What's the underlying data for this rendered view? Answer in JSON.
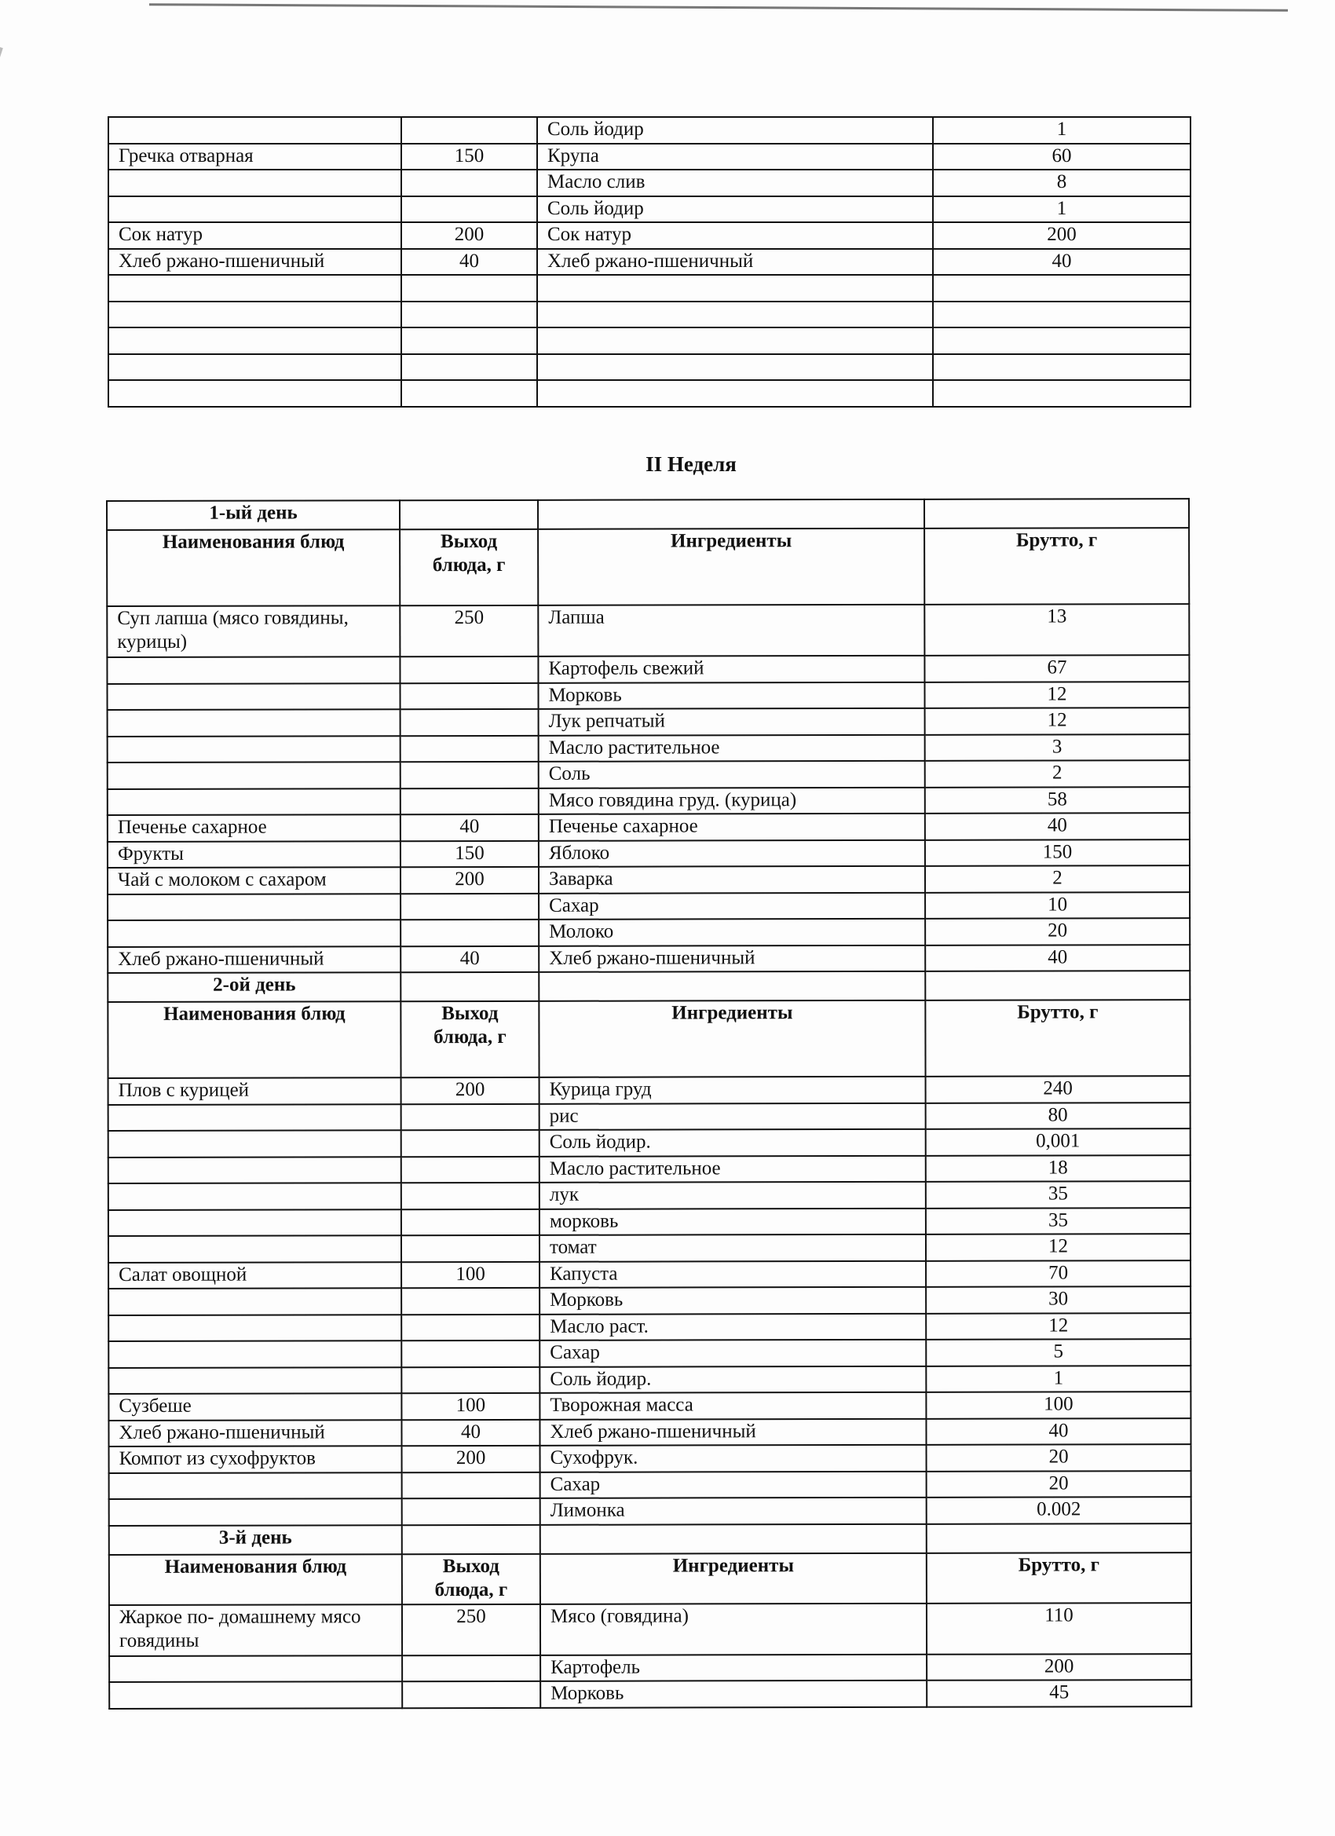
{
  "top_table": {
    "rows": [
      [
        "",
        "",
        "Соль йодир",
        "1"
      ],
      [
        "Гречка отварная",
        "150",
        "Крупа",
        "60"
      ],
      [
        "",
        "",
        "Масло слив",
        "8"
      ],
      [
        "",
        "",
        "Соль йодир",
        "1"
      ],
      [
        "Сок натур",
        "200",
        "Сок натур",
        "200"
      ],
      [
        "Хлеб ржано-пшеничный",
        "40",
        "Хлеб ржано-пшеничный",
        "40"
      ],
      [
        "",
        "",
        "",
        ""
      ],
      [
        "",
        "",
        "",
        ""
      ],
      [
        "",
        "",
        "",
        ""
      ],
      [
        "",
        "",
        "",
        ""
      ],
      [
        "",
        "",
        "",
        ""
      ]
    ]
  },
  "week_title": "II Неделя",
  "week_table": {
    "headers": {
      "dish": "Наименования блюд",
      "yield": "Выход блюда, г",
      "ingredients": "Ингредиенты",
      "gross": "Брутто, г"
    },
    "days": [
      {
        "title": "1-ый день",
        "rows": [
          [
            "Суп лапша (мясо говядины, курицы)",
            "250",
            "Лапша",
            "13"
          ],
          [
            "",
            "",
            "Картофель свежий",
            "67"
          ],
          [
            "",
            "",
            "Морковь",
            "12"
          ],
          [
            "",
            "",
            "Лук репчатый",
            "12"
          ],
          [
            "",
            "",
            "Масло растительное",
            "3"
          ],
          [
            "",
            "",
            "Соль",
            "2"
          ],
          [
            "",
            "",
            "Мясо говядина груд. (курица)",
            "58"
          ],
          [
            "Печенье сахарное",
            "40",
            "Печенье сахарное",
            "40"
          ],
          [
            "Фрукты",
            "150",
            "Яблоко",
            "150"
          ],
          [
            "Чай с молоком с сахаром",
            "200",
            "Заварка",
            "2"
          ],
          [
            "",
            "",
            "Сахар",
            "10"
          ],
          [
            "",
            "",
            "Молоко",
            "20"
          ],
          [
            "Хлеб ржано-пшеничный",
            "40",
            "Хлеб ржано-пшеничный",
            "40"
          ]
        ]
      },
      {
        "title": "2-ой день",
        "rows": [
          [
            "Плов с курицей",
            "200",
            "Курица груд",
            "240"
          ],
          [
            "",
            "",
            "рис",
            "80"
          ],
          [
            "",
            "",
            "Соль йодир.",
            "0,001"
          ],
          [
            "",
            "",
            "Масло растительное",
            "18"
          ],
          [
            "",
            "",
            "лук",
            "35"
          ],
          [
            "",
            "",
            "морковь",
            "35"
          ],
          [
            "",
            "",
            "томат",
            "12"
          ],
          [
            "Салат овощной",
            "100",
            "Капуста",
            "70"
          ],
          [
            "",
            "",
            "Морковь",
            "30"
          ],
          [
            "",
            "",
            "Масло раст.",
            "12"
          ],
          [
            "",
            "",
            "Сахар",
            "5"
          ],
          [
            "",
            "",
            "Соль йодир.",
            "1"
          ],
          [
            "Сузбеше",
            "100",
            "Творожная масса",
            "100"
          ],
          [
            "Хлеб ржано-пшеничный",
            "40",
            "Хлеб ржано-пшеничный",
            "40"
          ],
          [
            "Компот из сухофруктов",
            "200",
            "Сухофрук.",
            "20"
          ],
          [
            "",
            "",
            "Сахар",
            "20"
          ],
          [
            "",
            "",
            "Лимонка",
            "0.002"
          ]
        ]
      },
      {
        "title": "3-й день",
        "rows": [
          [
            "Жаркое по- домашнему мясо говядины",
            "250",
            "Мясо (говядина)",
            "110"
          ],
          [
            "",
            "",
            "Картофель",
            "200"
          ],
          [
            "",
            "",
            "Морковь",
            "45"
          ]
        ]
      }
    ]
  }
}
